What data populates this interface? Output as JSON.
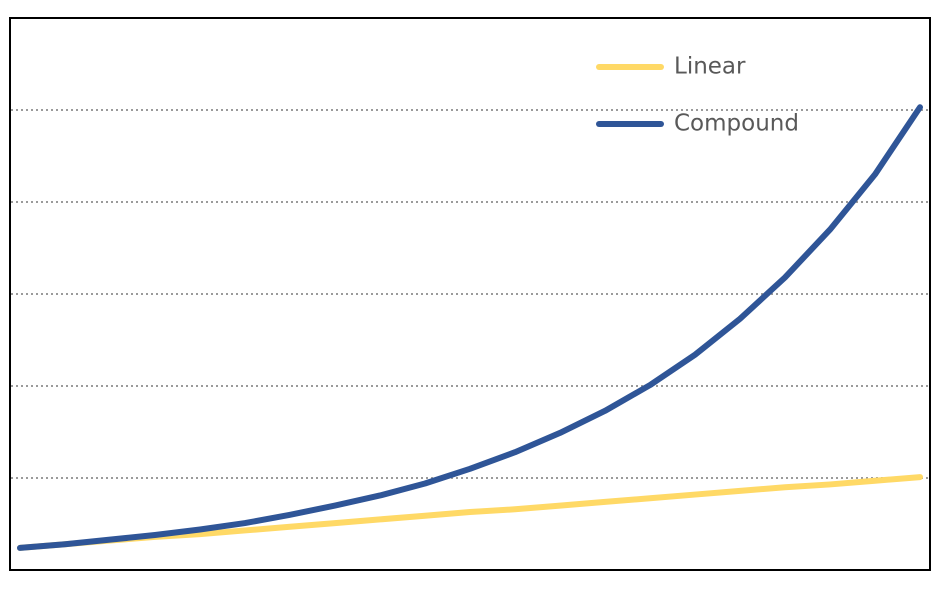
{
  "chart_data": {
    "type": "line",
    "categories": [
      null,
      null,
      null,
      null,
      null,
      null,
      null,
      null,
      null,
      null,
      null,
      null,
      null,
      null,
      null,
      null,
      null,
      null,
      null,
      null,
      null
    ],
    "series": [
      {
        "name": "Linear",
        "color": "#ffd966",
        "values": [
          0.24,
          0.28,
          0.32,
          0.36,
          0.39,
          0.43,
          0.47,
          0.51,
          0.55,
          0.59,
          0.63,
          0.66,
          0.7,
          0.74,
          0.78,
          0.82,
          0.86,
          0.9,
          0.93,
          0.97,
          1.01
        ]
      },
      {
        "name": "Compound",
        "color": "#2f5597",
        "values": [
          0.24,
          0.28,
          0.33,
          0.38,
          0.44,
          0.51,
          0.6,
          0.7,
          0.81,
          0.94,
          1.1,
          1.28,
          1.49,
          1.73,
          2.01,
          2.34,
          2.73,
          3.18,
          3.7,
          4.3,
          5.03
        ]
      }
    ],
    "ylim": [
      0,
      6
    ],
    "yticks": [
      1,
      2,
      3,
      4,
      5
    ],
    "grid": true
  }
}
